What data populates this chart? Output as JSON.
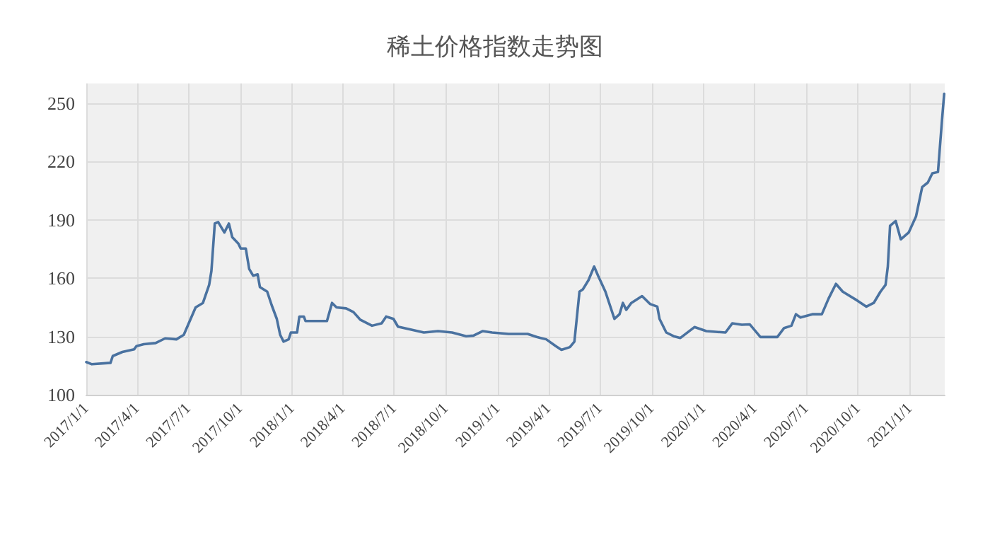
{
  "chart_data": {
    "type": "line",
    "title": "稀土价格指数走势图",
    "x": [
      "2017-01-01",
      "2017-01-11",
      "2017-02-13",
      "2017-02-17",
      "2017-03-06",
      "2017-03-27",
      "2017-03-31",
      "2017-04-13",
      "2017-05-04",
      "2017-05-21",
      "2017-06-10",
      "2017-06-23",
      "2017-07-14",
      "2017-07-27",
      "2017-08-07",
      "2017-08-11",
      "2017-08-17",
      "2017-08-23",
      "2017-09-03",
      "2017-09-11",
      "2017-09-17",
      "2017-09-28",
      "2017-10-02",
      "2017-10-11",
      "2017-10-17",
      "2017-10-24",
      "2017-11-01",
      "2017-11-05",
      "2017-11-18",
      "2017-11-26",
      "2017-12-05",
      "2017-12-11",
      "2017-12-17",
      "2017-12-26",
      "2017-12-30",
      "2018-01-10",
      "2018-01-14",
      "2018-01-22",
      "2018-01-25",
      "2018-03-04",
      "2018-03-13",
      "2018-03-21",
      "2018-04-07",
      "2018-04-20",
      "2018-05-02",
      "2018-05-23",
      "2018-06-09",
      "2018-06-17",
      "2018-06-30",
      "2018-07-08",
      "2018-07-29",
      "2018-08-23",
      "2018-09-17",
      "2018-10-12",
      "2018-11-06",
      "2018-11-19",
      "2018-12-05",
      "2018-12-22",
      "2019-01-20",
      "2019-02-23",
      "2019-03-11",
      "2019-03-28",
      "2019-04-14",
      "2019-04-24",
      "2019-05-09",
      "2019-05-17",
      "2019-05-26",
      "2019-06-01",
      "2019-06-11",
      "2019-06-21",
      "2019-06-28",
      "2019-07-11",
      "2019-07-27",
      "2019-08-05",
      "2019-08-11",
      "2019-08-17",
      "2019-08-26",
      "2019-09-14",
      "2019-09-28",
      "2019-10-11",
      "2019-10-15",
      "2019-10-27",
      "2019-11-09",
      "2019-11-21",
      "2019-12-16",
      "2020-01-06",
      "2020-02-09",
      "2020-02-21",
      "2020-03-09",
      "2020-03-23",
      "2020-04-11",
      "2020-05-11",
      "2020-05-23",
      "2020-06-05",
      "2020-06-13",
      "2020-06-21",
      "2020-07-12",
      "2020-07-29",
      "2020-08-10",
      "2020-08-23",
      "2020-09-04",
      "2020-09-30",
      "2020-10-16",
      "2020-10-29",
      "2020-11-10",
      "2020-11-19",
      "2020-11-23",
      "2020-11-27",
      "2020-12-07",
      "2020-12-16",
      "2020-12-30",
      "2021-01-12",
      "2021-01-23",
      "2021-02-02",
      "2021-02-10",
      "2021-02-20",
      "2021-02-27",
      "2021-03-03"
    ],
    "series": [
      {
        "color": "#4a72a0",
        "values": [
          116.8,
          115.7,
          116.4,
          119.9,
          122,
          123.4,
          125,
          126,
          126.6,
          129,
          128.5,
          130.8,
          144.9,
          147.2,
          156.5,
          163.6,
          188,
          188.8,
          183.4,
          188,
          181,
          177.6,
          175.2,
          175.2,
          164.7,
          161.2,
          161.9,
          155.4,
          153,
          146,
          139,
          130.8,
          127.3,
          128.5,
          132,
          132,
          140.2,
          140.2,
          137.9,
          137.9,
          147.2,
          144.9,
          144.4,
          142.5,
          138.6,
          135.5,
          136.7,
          140.2,
          139,
          135,
          133.6,
          132,
          132.7,
          132,
          130.1,
          130.4,
          132.7,
          132,
          131.3,
          131.3,
          129.7,
          128.5,
          125,
          123.1,
          124.5,
          127.3,
          153,
          154.2,
          158.9,
          165.9,
          161.2,
          153,
          139,
          141.4,
          147.2,
          143.7,
          147.2,
          150.7,
          146.7,
          145.3,
          139,
          132,
          130.1,
          129.2,
          134.8,
          132.7,
          132,
          136.7,
          136,
          136.2,
          129.7,
          129.7,
          134.3,
          135.5,
          141.4,
          139.7,
          141.4,
          141.4,
          149.5,
          157,
          153,
          148.4,
          145.3,
          147.2,
          153,
          156.5,
          165.9,
          186.9,
          189.3,
          179.9,
          183.4,
          191.6,
          206.8,
          209.1,
          213.8,
          214.5,
          240.7,
          254.7
        ]
      }
    ],
    "xlim": [
      "2017-01-01",
      "2021-03-04"
    ],
    "xticks": [
      {
        "value": "2017-01-01",
        "label": "2017/1/1"
      },
      {
        "value": "2017-04-01",
        "label": "2017/4/1"
      },
      {
        "value": "2017-07-01",
        "label": "2017/7/1"
      },
      {
        "value": "2017-10-01",
        "label": "2017/10/1"
      },
      {
        "value": "2018-01-01",
        "label": "2018/1/1"
      },
      {
        "value": "2018-04-01",
        "label": "2018/4/1"
      },
      {
        "value": "2018-07-01",
        "label": "2018/7/1"
      },
      {
        "value": "2018-10-01",
        "label": "2018/10/1"
      },
      {
        "value": "2019-01-01",
        "label": "2019/1/1"
      },
      {
        "value": "2019-04-01",
        "label": "2019/4/1"
      },
      {
        "value": "2019-07-01",
        "label": "2019/7/1"
      },
      {
        "value": "2019-10-01",
        "label": "2019/10/1"
      },
      {
        "value": "2020-01-01",
        "label": "2020/1/1"
      },
      {
        "value": "2020-04-01",
        "label": "2020/4/1"
      },
      {
        "value": "2020-07-01",
        "label": "2020/7/1"
      },
      {
        "value": "2020-10-01",
        "label": "2020/10/1"
      },
      {
        "value": "2021-01-01",
        "label": "2021/1/1"
      }
    ],
    "ylim": [
      100,
      260
    ],
    "yticks": [
      100,
      130,
      160,
      190,
      220,
      250
    ],
    "grid": true,
    "marker": "none",
    "line_style": "solid"
  }
}
